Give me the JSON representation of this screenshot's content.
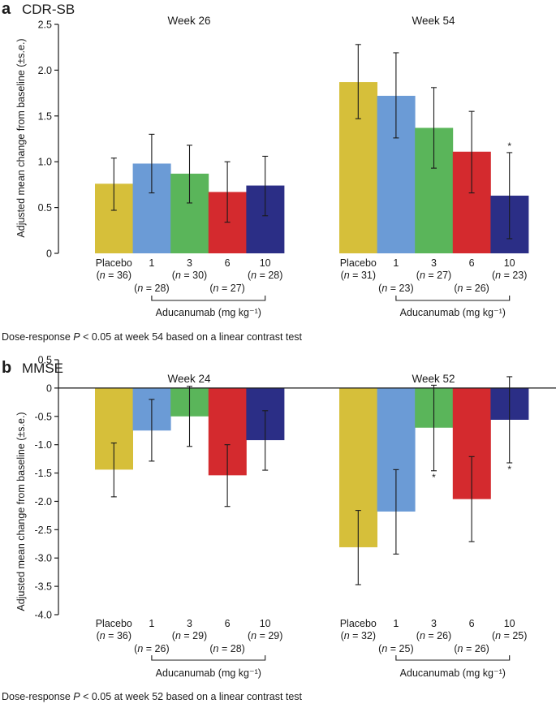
{
  "colors": {
    "placebo": "#d6bf3a",
    "dose1": "#6b9bd6",
    "dose3": "#5ab55a",
    "dose6": "#d42a2e",
    "dose10": "#2b2e86"
  },
  "chart_data": [
    {
      "type": "bar",
      "panel_label": "a",
      "title": "CDR-SB",
      "ylabel": "Adjusted mean change from baseline (±s.e.)",
      "ylim": [
        0,
        2.5
      ],
      "yticks": [
        "0",
        "0.5",
        "1.0",
        "1.5",
        "2.0",
        "2.5"
      ],
      "ytick_values": [
        0,
        0.5,
        1.0,
        1.5,
        2.0,
        2.5
      ],
      "categories": [
        "Placebo",
        "1",
        "3",
        "6",
        "10"
      ],
      "group_label": "Aducanumab (mg kg⁻¹)",
      "groups": [
        {
          "name": "Week 26",
          "n_labels": [
            "(n = 36)",
            "(n = 28)",
            "(n = 30)",
            "(n = 27)",
            "(n = 28)"
          ],
          "values": [
            0.76,
            0.98,
            0.87,
            0.67,
            0.74
          ],
          "err_low": [
            0.47,
            0.66,
            0.55,
            0.34,
            0.41
          ],
          "err_high": [
            1.04,
            1.3,
            1.18,
            1.0,
            1.06
          ],
          "stars": [
            "",
            "",
            "",
            "",
            ""
          ]
        },
        {
          "name": "Week 54",
          "n_labels": [
            "(n = 31)",
            "(n = 23)",
            "(n = 27)",
            "(n = 26)",
            "(n = 23)"
          ],
          "values": [
            1.87,
            1.72,
            1.37,
            1.11,
            0.63
          ],
          "err_low": [
            1.47,
            1.26,
            0.93,
            0.66,
            0.16
          ],
          "err_high": [
            2.28,
            2.19,
            1.81,
            1.55,
            1.1
          ],
          "stars": [
            "",
            "",
            "",
            "",
            "*"
          ]
        }
      ],
      "footnote_pre": "Dose-response ",
      "footnote_p": "P",
      "footnote_post": " < 0.05 at week 54 based on a linear contrast test"
    },
    {
      "type": "bar",
      "panel_label": "b",
      "title": "MMSE",
      "ylabel": "Adjusted mean change from baseline (±s.e.)",
      "ylim": [
        -4.0,
        0.5
      ],
      "yticks": [
        "-4.0",
        "-3.5",
        "-3.0",
        "-2.5",
        "-2.0",
        "-1.5",
        "-1.0",
        "-0.5",
        "0",
        "0.5"
      ],
      "ytick_values": [
        -4.0,
        -3.5,
        -3.0,
        -2.5,
        -2.0,
        -1.5,
        -1.0,
        -0.5,
        0,
        0.5
      ],
      "categories": [
        "Placebo",
        "1",
        "3",
        "6",
        "10"
      ],
      "group_label": "Aducanumab (mg kg⁻¹)",
      "groups": [
        {
          "name": "Week 24",
          "n_labels": [
            "(n = 36)",
            "(n = 26)",
            "(n = 29)",
            "(n = 28)",
            "(n = 29)"
          ],
          "values": [
            -1.44,
            -0.75,
            -0.5,
            -1.54,
            -0.92
          ],
          "err_low": [
            -1.92,
            -1.29,
            -1.03,
            -2.09,
            -1.45
          ],
          "err_high": [
            -0.97,
            -0.2,
            0.03,
            -1.0,
            -0.4
          ],
          "stars": [
            "",
            "",
            "",
            "",
            ""
          ]
        },
        {
          "name": "Week 52",
          "n_labels": [
            "(n = 32)",
            "(n = 25)",
            "(n = 26)",
            "(n = 26)",
            "(n = 25)"
          ],
          "values": [
            -2.81,
            -2.18,
            -0.7,
            -1.96,
            -0.56
          ],
          "err_low": [
            -3.47,
            -2.93,
            -1.46,
            -2.71,
            -1.32
          ],
          "err_high": [
            -2.16,
            -1.44,
            0.05,
            -1.21,
            0.2
          ],
          "stars": [
            "",
            "",
            "*",
            "",
            "*"
          ]
        }
      ],
      "footnote_pre": "Dose-response ",
      "footnote_p": "P",
      "footnote_post": " < 0.05 at week 52 based on a linear contrast test"
    }
  ]
}
